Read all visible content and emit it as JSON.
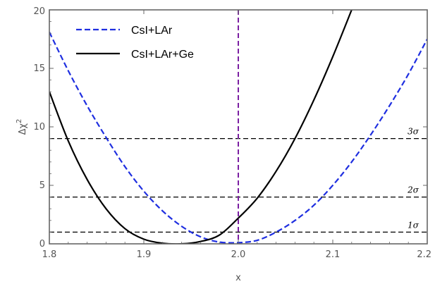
{
  "chart_data": {
    "type": "line",
    "title": "",
    "xlabel": "x",
    "ylabel": "Δχ",
    "ylabel_superscript": "2",
    "xlim": [
      1.8,
      2.2
    ],
    "ylim": [
      0,
      20
    ],
    "xticks": [
      "1.8",
      "1.9",
      "2.0",
      "2.1",
      "2.2"
    ],
    "yticks": [
      "0",
      "5",
      "10",
      "15",
      "20"
    ],
    "xtick_values": [
      1.8,
      1.9,
      2.0,
      2.1,
      2.2
    ],
    "ytick_values": [
      0,
      5,
      10,
      15,
      20
    ],
    "legend_position": "top-left",
    "grid": false,
    "series": [
      {
        "name": "CsI+LAr",
        "color": "#1f2fe0",
        "style": "dashed",
        "x": [
          1.8,
          1.82,
          1.84,
          1.86,
          1.88,
          1.9,
          1.92,
          1.94,
          1.96,
          1.98,
          2.0,
          2.02,
          2.04,
          2.06,
          2.08,
          2.1,
          2.12,
          2.14,
          2.16,
          2.18,
          2.2
        ],
        "y": [
          18.1,
          14.8,
          11.8,
          9.1,
          6.6,
          4.5,
          2.8,
          1.5,
          0.6,
          0.15,
          0.1,
          0.3,
          1.0,
          2.0,
          3.3,
          5.0,
          7.0,
          9.3,
          11.8,
          14.5,
          17.5
        ]
      },
      {
        "name": "CsI+LAr+Ge",
        "color": "#000000",
        "style": "solid",
        "x": [
          1.8,
          1.82,
          1.84,
          1.86,
          1.88,
          1.9,
          1.92,
          1.94,
          1.96,
          1.98,
          2.0,
          2.02,
          2.04,
          2.06,
          2.08,
          2.1,
          2.12
        ],
        "y": [
          13.0,
          8.8,
          5.5,
          3.0,
          1.3,
          0.4,
          0.05,
          0.0,
          0.2,
          0.75,
          2.2,
          3.9,
          6.2,
          9.0,
          12.3,
          16.0,
          20.0
        ]
      }
    ],
    "reference_lines": [
      {
        "y": 1,
        "label": "1σ",
        "color": "#000000",
        "style": "dashed"
      },
      {
        "y": 4,
        "label": "2σ",
        "color": "#000000",
        "style": "dashed"
      },
      {
        "y": 9,
        "label": "3σ",
        "color": "#000000",
        "style": "dashed"
      }
    ],
    "vertical_line": {
      "x": 2.0,
      "color": "#7b1fa2",
      "style": "dashed"
    }
  }
}
